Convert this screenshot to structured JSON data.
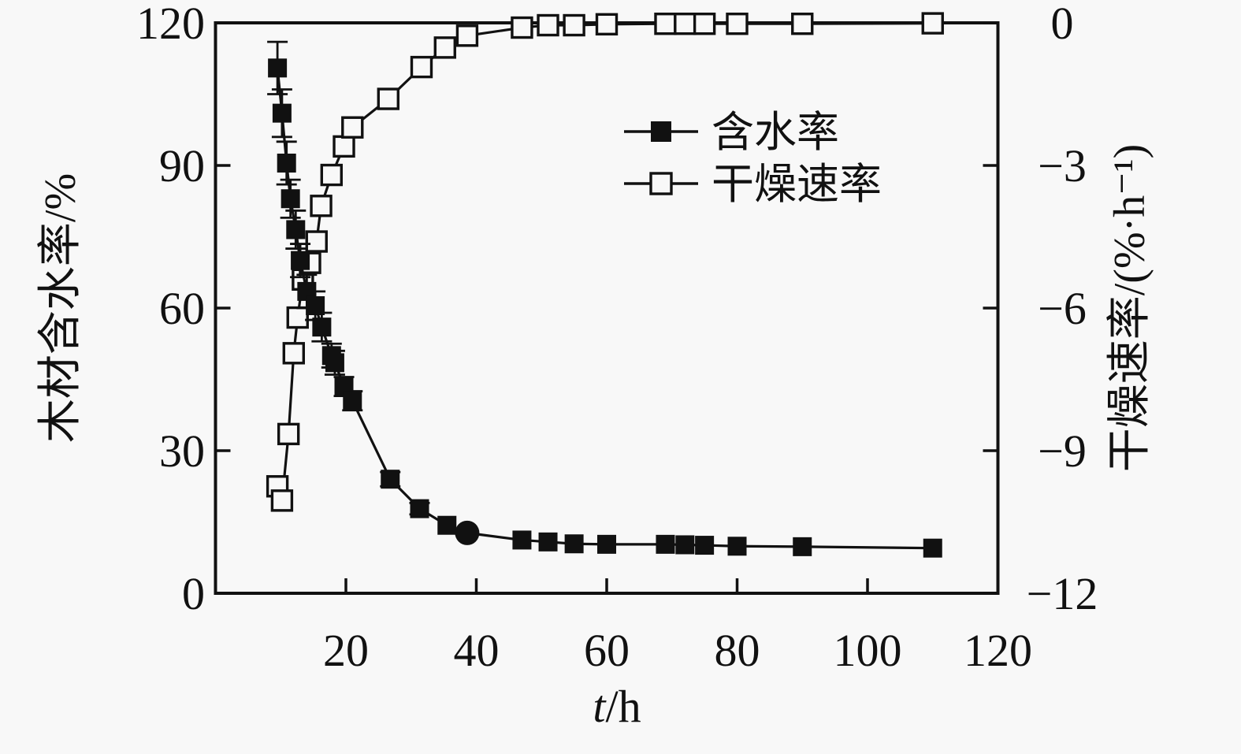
{
  "figure": {
    "background": "#f8f8f8",
    "ink": "#111111"
  },
  "chart_data": {
    "type": "line",
    "title": "",
    "xlabel": "t/h",
    "xlim": [
      0,
      120
    ],
    "x_ticks": [
      20,
      40,
      60,
      80,
      100,
      120
    ],
    "grid": false,
    "legend_position": "upper-right-inside",
    "left_axis": {
      "label": "木材含水率/%",
      "lim": [
        0,
        120
      ],
      "ticks": [
        0,
        30,
        60,
        90,
        120
      ]
    },
    "right_axis": {
      "label": "干燥速率/(%·h⁻¹)",
      "lim": [
        -12,
        0
      ],
      "ticks": [
        0,
        -3,
        -6,
        -9,
        -12
      ]
    },
    "legend": [
      {
        "id": "moisture",
        "label": "含水率",
        "marker": "filled-square"
      },
      {
        "id": "drying-rate",
        "label": "干燥速率",
        "marker": "open-square"
      }
    ],
    "series": [
      {
        "id": "drying-rate",
        "name": "干燥速率",
        "axis": "right",
        "marker": "open-square",
        "x": [
          9.5,
          10.2,
          11.2,
          12.0,
          12.6,
          13.4,
          14.5,
          15.5,
          16.2,
          17.8,
          19.7,
          21.0,
          26.5,
          31.6,
          35.2,
          38.6,
          47,
          51,
          55,
          60,
          69,
          72,
          75,
          80,
          90,
          110
        ],
        "y": [
          -9.75,
          -10.05,
          -8.65,
          -6.95,
          -6.2,
          -5.4,
          -5.05,
          -4.6,
          -3.85,
          -3.2,
          -2.6,
          -2.2,
          -1.6,
          -0.93,
          -0.52,
          -0.27,
          -0.1,
          -0.05,
          -0.05,
          -0.03,
          -0.02,
          -0.02,
          -0.02,
          -0.02,
          -0.02,
          -0.01
        ]
      },
      {
        "id": "moisture",
        "name": "含水率",
        "axis": "left",
        "marker": "filled-square",
        "circle_point_index": 16,
        "x": [
          9.5,
          10.2,
          10.9,
          11.5,
          12.3,
          13.0,
          14.0,
          15.3,
          16.3,
          17.8,
          18.3,
          19.7,
          21.0,
          26.8,
          31.3,
          35.5,
          38.6,
          47,
          51,
          55,
          60,
          69,
          72,
          75,
          80,
          90,
          110
        ],
        "y": [
          110.5,
          101,
          90.5,
          83,
          76.5,
          70,
          63.5,
          60.5,
          56,
          50,
          48.5,
          43.5,
          40.5,
          24,
          17.8,
          14.3,
          12.7,
          11.2,
          10.8,
          10.4,
          10.3,
          10.3,
          10.2,
          10.1,
          9.9,
          9.8,
          9.5
        ],
        "yerr": [
          5.5,
          5,
          4.5,
          4,
          4,
          3.5,
          3.5,
          3,
          3,
          2.5,
          2.5,
          2,
          2,
          1.5,
          1.2,
          0,
          0,
          0,
          0,
          0,
          0,
          0,
          0,
          0,
          0,
          0,
          0
        ]
      }
    ]
  }
}
